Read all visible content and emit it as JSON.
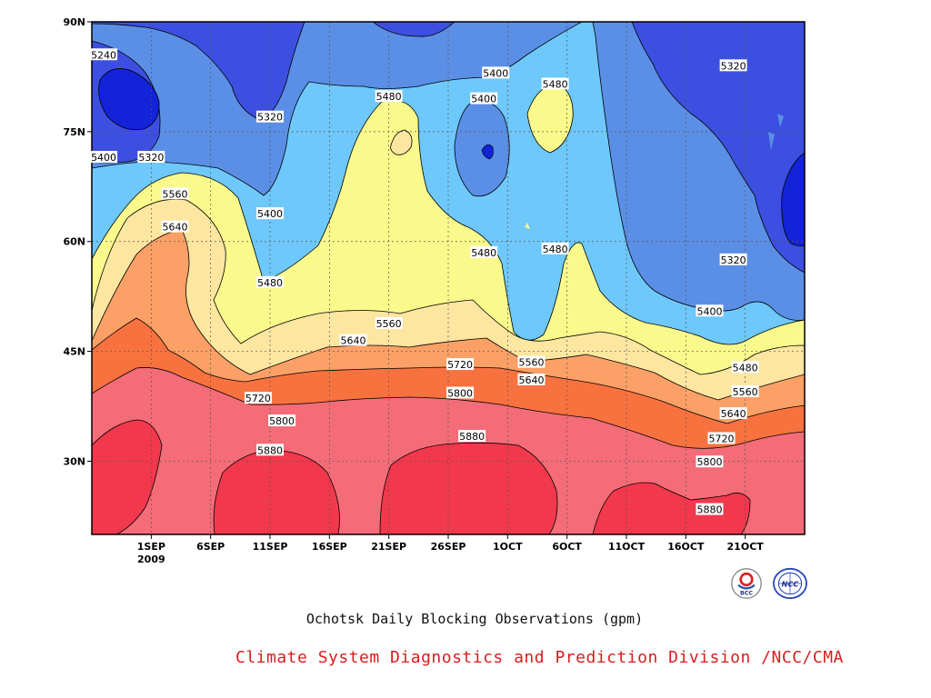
{
  "chart_data": {
    "type": "heatmap",
    "title": "Ochotsk Daily Blocking Observations (gpm)",
    "x_ticks": [
      "1SEP",
      "6SEP",
      "11SEP",
      "16SEP",
      "21SEP",
      "26SEP",
      "1OCT",
      "6OCT",
      "11OCT",
      "16OCT",
      "21OCT"
    ],
    "x_year_label": "2009",
    "x_range": [
      "2009-08-27",
      "2009-10-26"
    ],
    "y_ticks": [
      "30N",
      "45N",
      "60N",
      "75N",
      "90N"
    ],
    "y_range": [
      20,
      90
    ],
    "grid": true,
    "contour_levels": [
      5240,
      5320,
      5400,
      5480,
      5560,
      5640,
      5720,
      5800,
      5880
    ],
    "colors": {
      "lt5240": "#1223d8",
      "5240": "#3c4fe0",
      "5320": "#5b8fe6",
      "5400": "#6ec8fb",
      "5480": "#fafa8c",
      "5560": "#fce6a0",
      "5640": "#fba066",
      "5720": "#f87240",
      "5800": "#f46c78",
      "5880": "#f2384c"
    },
    "contour_labels": [
      {
        "text": "5240",
        "date": "2009-08-28",
        "lat": 85.5
      },
      {
        "text": "5320",
        "date": "2009-09-01",
        "lat": 71.5
      },
      {
        "text": "5400",
        "date": "2009-08-28",
        "lat": 71.5
      },
      {
        "text": "5560",
        "date": "2009-09-03",
        "lat": 66.5
      },
      {
        "text": "5640",
        "date": "2009-09-03",
        "lat": 62.0
      },
      {
        "text": "5320",
        "date": "2009-09-11",
        "lat": 77.0
      },
      {
        "text": "5400",
        "date": "2009-09-11",
        "lat": 63.8
      },
      {
        "text": "5480",
        "date": "2009-09-11",
        "lat": 54.4
      },
      {
        "text": "5480",
        "date": "2009-09-21",
        "lat": 79.8
      },
      {
        "text": "5400",
        "date": "2009-09-30",
        "lat": 83.0
      },
      {
        "text": "5400",
        "date": "2009-09-29",
        "lat": 79.5
      },
      {
        "text": "5480",
        "date": "2009-10-05",
        "lat": 81.5
      },
      {
        "text": "5320",
        "date": "2009-10-20",
        "lat": 84.0
      },
      {
        "text": "5480",
        "date": "2009-09-29",
        "lat": 58.5
      },
      {
        "text": "5480",
        "date": "2009-10-05",
        "lat": 59.0
      },
      {
        "text": "5320",
        "date": "2009-10-20",
        "lat": 57.5
      },
      {
        "text": "5400",
        "date": "2009-10-18",
        "lat": 50.5
      },
      {
        "text": "5560",
        "date": "2009-09-21",
        "lat": 48.8
      },
      {
        "text": "5640",
        "date": "2009-09-18",
        "lat": 46.5
      },
      {
        "text": "5560",
        "date": "2009-10-03",
        "lat": 43.5
      },
      {
        "text": "5720",
        "date": "2009-09-27",
        "lat": 43.2
      },
      {
        "text": "5640",
        "date": "2009-10-03",
        "lat": 41.1
      },
      {
        "text": "5480",
        "date": "2009-10-21",
        "lat": 42.8
      },
      {
        "text": "5560",
        "date": "2009-10-21",
        "lat": 39.5
      },
      {
        "text": "5720",
        "date": "2009-09-10",
        "lat": 38.6
      },
      {
        "text": "5800",
        "date": "2009-09-27",
        "lat": 39.3
      },
      {
        "text": "5640",
        "date": "2009-10-20",
        "lat": 36.5
      },
      {
        "text": "5800",
        "date": "2009-09-12",
        "lat": 35.5
      },
      {
        "text": "5720",
        "date": "2009-10-19",
        "lat": 33.1
      },
      {
        "text": "5880",
        "date": "2009-09-11",
        "lat": 31.5
      },
      {
        "text": "5880",
        "date": "2009-09-28",
        "lat": 33.4
      },
      {
        "text": "5800",
        "date": "2009-10-18",
        "lat": 29.9
      },
      {
        "text": "5880",
        "date": "2009-10-18",
        "lat": 23.4
      }
    ]
  },
  "caption": "Ochotsk Daily Blocking Observations (gpm)",
  "org": "Climate System Diagnostics and Prediction Division /NCC/CMA",
  "logos": [
    "bcc-logo",
    "ncc-logo"
  ]
}
